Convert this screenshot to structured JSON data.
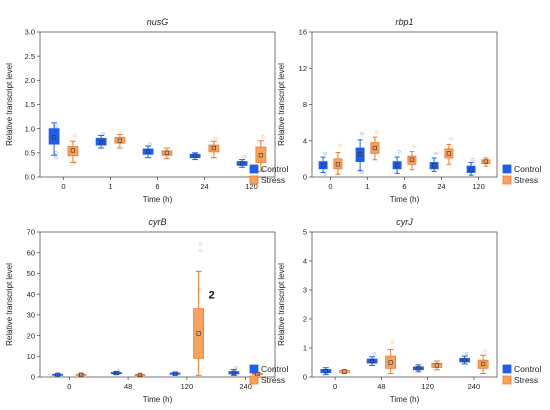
{
  "colors": {
    "control": "#1f5fe6",
    "stress": "#f0782a",
    "stress_fill": "#f5a35f"
  },
  "chart_data": [
    {
      "type": "box",
      "title": "nusG",
      "xlabel": "Time (h)",
      "ylabel": "Relative transcript level",
      "categories": [
        "0",
        "1",
        "6",
        "24",
        "120"
      ],
      "ylim": [
        0,
        3
      ],
      "yticks": [
        "0.0",
        "0.5",
        "1.0",
        "1.5",
        "2.0",
        "2.5",
        "3.0"
      ],
      "legend": [
        "Control",
        "Stress"
      ],
      "series": [
        {
          "name": "Control",
          "boxes": [
            {
              "min": 0.45,
              "q1": 0.68,
              "median": 0.82,
              "q3": 1.0,
              "max": 1.12,
              "outliers": [
                0.4,
                0.5,
                1.05
              ]
            },
            {
              "min": 0.6,
              "q1": 0.66,
              "median": 0.72,
              "q3": 0.8,
              "max": 0.86,
              "outliers": [
                0.9
              ]
            },
            {
              "min": 0.4,
              "q1": 0.47,
              "median": 0.53,
              "q3": 0.58,
              "max": 0.64,
              "outliers": [
                0.68
              ]
            },
            {
              "min": 0.36,
              "q1": 0.4,
              "median": 0.44,
              "q3": 0.47,
              "max": 0.5,
              "outliers": []
            },
            {
              "min": 0.2,
              "q1": 0.24,
              "median": 0.28,
              "q3": 0.32,
              "max": 0.36,
              "outliers": [
                0.42
              ]
            }
          ]
        },
        {
          "name": "Stress",
          "boxes": [
            {
              "min": 0.3,
              "q1": 0.44,
              "median": 0.55,
              "q3": 0.63,
              "max": 0.74,
              "outliers": [
                0.85,
                0.3
              ]
            },
            {
              "min": 0.6,
              "q1": 0.7,
              "median": 0.75,
              "q3": 0.82,
              "max": 0.88,
              "outliers": []
            },
            {
              "min": 0.38,
              "q1": 0.45,
              "median": 0.5,
              "q3": 0.54,
              "max": 0.6,
              "outliers": []
            },
            {
              "min": 0.4,
              "q1": 0.52,
              "median": 0.6,
              "q3": 0.66,
              "max": 0.74,
              "outliers": [
                0.8
              ]
            },
            {
              "min": 0.12,
              "q1": 0.3,
              "median": 0.45,
              "q3": 0.62,
              "max": 0.75,
              "outliers": [
                0.84,
                0.15
              ]
            }
          ]
        }
      ]
    },
    {
      "type": "box",
      "title": "rbp1",
      "xlabel": "Time (h)",
      "ylabel": "Relative transcript level",
      "categories": [
        "0",
        "1",
        "6",
        "24",
        "120"
      ],
      "ylim": [
        0,
        16
      ],
      "yticks": [
        "0",
        "4",
        "8",
        "12",
        "16"
      ],
      "legend": [
        "Control",
        "Stress"
      ],
      "series": [
        {
          "name": "Control",
          "boxes": [
            {
              "min": 0.5,
              "q1": 0.9,
              "median": 1.3,
              "q3": 1.7,
              "max": 2.2,
              "outliers": [
                2.6,
                0.3
              ]
            },
            {
              "min": 0.7,
              "q1": 1.7,
              "median": 2.5,
              "q3": 3.2,
              "max": 4.1,
              "outliers": [
                4.8,
                0.5
              ]
            },
            {
              "min": 0.4,
              "q1": 0.9,
              "median": 1.3,
              "q3": 1.7,
              "max": 2.2,
              "outliers": [
                2.8
              ]
            },
            {
              "min": 0.6,
              "q1": 0.9,
              "median": 1.3,
              "q3": 1.6,
              "max": 2.1,
              "outliers": [
                2.6
              ]
            },
            {
              "min": 0.2,
              "q1": 0.5,
              "median": 0.8,
              "q3": 1.2,
              "max": 1.6,
              "outliers": [
                1.9
              ]
            }
          ]
        },
        {
          "name": "Stress",
          "boxes": [
            {
              "min": 0.3,
              "q1": 0.9,
              "median": 1.4,
              "q3": 2.0,
              "max": 2.7,
              "outliers": [
                3.5
              ]
            },
            {
              "min": 1.9,
              "q1": 2.6,
              "median": 3.2,
              "q3": 3.8,
              "max": 4.4,
              "outliers": [
                5.0
              ]
            },
            {
              "min": 0.8,
              "q1": 1.4,
              "median": 1.9,
              "q3": 2.3,
              "max": 2.8,
              "outliers": [
                3.4
              ]
            },
            {
              "min": 1.4,
              "q1": 2.1,
              "median": 2.6,
              "q3": 3.1,
              "max": 3.6,
              "outliers": [
                4.2
              ]
            },
            {
              "min": 1.2,
              "q1": 1.5,
              "median": 1.7,
              "q3": 1.9,
              "max": 2.1,
              "outliers": []
            }
          ]
        }
      ]
    },
    {
      "type": "box",
      "title": "cyrB",
      "xlabel": "Time (h)",
      "ylabel": "Relative transcript level",
      "categories": [
        "0",
        "48",
        "120",
        "240"
      ],
      "ylim": [
        0,
        70
      ],
      "yticks": [
        "0",
        "10",
        "20",
        "30",
        "40",
        "50",
        "60",
        "70"
      ],
      "legend": [
        "Control",
        "Stress"
      ],
      "annotation": "2",
      "series": [
        {
          "name": "Control",
          "boxes": [
            {
              "min": 0.6,
              "q1": 0.9,
              "median": 1.1,
              "q3": 1.3,
              "max": 1.6,
              "outliers": []
            },
            {
              "min": 1.2,
              "q1": 1.6,
              "median": 1.9,
              "q3": 2.2,
              "max": 2.6,
              "outliers": [
                3.0
              ]
            },
            {
              "min": 0.9,
              "q1": 1.3,
              "median": 1.6,
              "q3": 1.9,
              "max": 2.3,
              "outliers": []
            },
            {
              "min": 0.8,
              "q1": 1.5,
              "median": 2.0,
              "q3": 2.6,
              "max": 3.6,
              "outliers": [
                4.5
              ]
            }
          ]
        },
        {
          "name": "Stress",
          "boxes": [
            {
              "min": 0.6,
              "q1": 0.9,
              "median": 1.1,
              "q3": 1.3,
              "max": 1.6,
              "outliers": []
            },
            {
              "min": 0.5,
              "q1": 0.8,
              "median": 1.0,
              "q3": 1.2,
              "max": 1.4,
              "outliers": []
            },
            {
              "min": 0.8,
              "q1": 9.0,
              "median": 21.0,
              "q3": 33.0,
              "max": 51.0,
              "outliers": [
                64,
                61,
                42
              ]
            },
            {
              "min": 0.8,
              "q1": 1.2,
              "median": 1.5,
              "q3": 1.8,
              "max": 2.1,
              "outliers": []
            }
          ]
        }
      ]
    },
    {
      "type": "box",
      "title": "cyrJ",
      "xlabel": "Time (h)",
      "ylabel": "Relative transcript level",
      "categories": [
        "0",
        "48",
        "120",
        "240"
      ],
      "ylim": [
        0,
        5
      ],
      "yticks": [
        "0",
        "1",
        "2",
        "3",
        "4",
        "5"
      ],
      "legend": [
        "Control",
        "Stress"
      ],
      "series": [
        {
          "name": "Control",
          "boxes": [
            {
              "min": 0.08,
              "q1": 0.15,
              "median": 0.2,
              "q3": 0.26,
              "max": 0.32,
              "outliers": []
            },
            {
              "min": 0.4,
              "q1": 0.48,
              "median": 0.55,
              "q3": 0.62,
              "max": 0.7,
              "outliers": [
                0.8
              ]
            },
            {
              "min": 0.18,
              "q1": 0.25,
              "median": 0.3,
              "q3": 0.35,
              "max": 0.42,
              "outliers": []
            },
            {
              "min": 0.45,
              "q1": 0.52,
              "median": 0.58,
              "q3": 0.64,
              "max": 0.72,
              "outliers": [
                0.8
              ]
            }
          ]
        },
        {
          "name": "Stress",
          "boxes": [
            {
              "min": 0.12,
              "q1": 0.16,
              "median": 0.19,
              "q3": 0.22,
              "max": 0.25,
              "outliers": []
            },
            {
              "min": 0.12,
              "q1": 0.3,
              "median": 0.5,
              "q3": 0.72,
              "max": 0.95,
              "outliers": [
                1.2
              ]
            },
            {
              "min": 0.25,
              "q1": 0.33,
              "median": 0.4,
              "q3": 0.47,
              "max": 0.55,
              "outliers": []
            },
            {
              "min": 0.12,
              "q1": 0.3,
              "median": 0.45,
              "q3": 0.58,
              "max": 0.75,
              "outliers": [
                0.9
              ]
            }
          ]
        }
      ]
    }
  ]
}
